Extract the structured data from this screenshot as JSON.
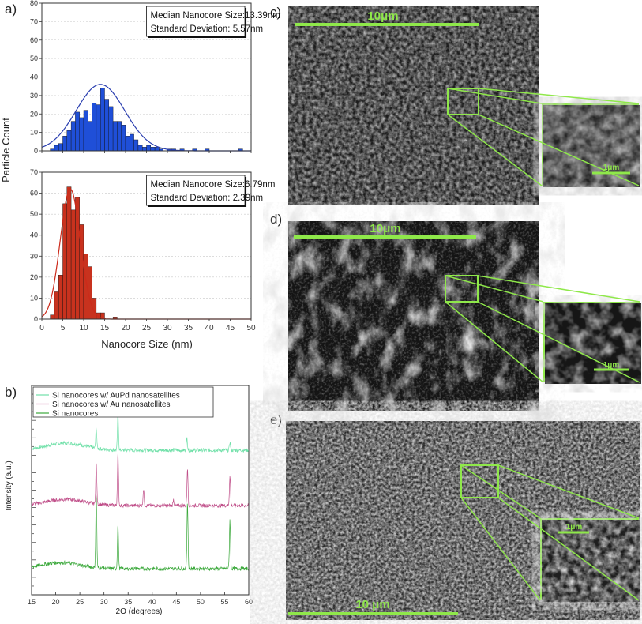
{
  "panels": {
    "a": "a)",
    "b": "b)",
    "c": "c)",
    "d": "d)",
    "e": "e)"
  },
  "histogram": {
    "ylabel": "Particle Count",
    "xlabel": "Nanocore Size (nm)",
    "xticks": [
      "0",
      "5",
      "10",
      "15",
      "20",
      "25",
      "30",
      "35",
      "40",
      "45",
      "50"
    ],
    "top": {
      "median_text": "Median Nanocore Size:13.39nm",
      "std_text": "Standard Deviation: 5.57nm",
      "yticks": [
        "0",
        "10",
        "20",
        "30",
        "40",
        "50",
        "60",
        "70",
        "80"
      ],
      "color": "#1f4fd8",
      "curve_color": "#2b3fb0"
    },
    "bottom": {
      "median_text": "Median Nanocore Size:6.79nm",
      "std_text": "Standard Deviation: 2.39nm",
      "yticks": [
        "0",
        "10",
        "20",
        "30",
        "40",
        "50",
        "60",
        "70"
      ],
      "color": "#c8321e",
      "curve_color": "#cc2a1a"
    }
  },
  "xrd": {
    "ylabel": "Intensity (a.u.)",
    "xlabel": "2Θ (degrees)",
    "xticks": [
      "15",
      "20",
      "25",
      "30",
      "35",
      "40",
      "45",
      "50",
      "55",
      "60"
    ],
    "legend": [
      {
        "label": "Si nanocores w/ AuPd nanosatellites",
        "color": "#6fe0a8"
      },
      {
        "label": "Si nanocores w/ Au nanosatellites",
        "color": "#c0508a"
      },
      {
        "label": "Si nanocores",
        "color": "#3aa83a"
      }
    ]
  },
  "sem": {
    "c": {
      "scale_main": "10μm",
      "scale_inset": "1μm"
    },
    "d": {
      "scale_main": "10μm",
      "scale_inset": "1μm"
    },
    "e": {
      "scale_main": "10 μm",
      "scale_inset": "1μm"
    },
    "accent": "#8fe84a"
  },
  "chart_data": [
    {
      "type": "bar",
      "title": "",
      "xlabel": "Nanocore Size (nm)",
      "ylabel": "Particle Count",
      "xlim": [
        0,
        50
      ],
      "ylim": [
        0,
        80
      ],
      "bin_width": 1,
      "bin_starts": [
        2,
        3,
        4,
        5,
        6,
        7,
        8,
        9,
        10,
        11,
        12,
        13,
        14,
        15,
        16,
        17,
        18,
        19,
        20,
        21,
        22,
        23,
        24,
        25,
        26,
        27,
        28,
        30,
        31,
        33,
        36,
        39,
        47
      ],
      "values": [
        1,
        3,
        4,
        8,
        11,
        16,
        21,
        18,
        22,
        16,
        26,
        25,
        34,
        28,
        24,
        16,
        16,
        14,
        8,
        9,
        6,
        3,
        2,
        3,
        2,
        2,
        1,
        1,
        1,
        1,
        1,
        1,
        1
      ],
      "fit": {
        "type": "gaussian",
        "center": 14,
        "amplitude": 36,
        "sigma": 5.8
      },
      "annotations": [
        "Median Nanocore Size:13.39nm",
        "Standard Deviation: 5.57nm"
      ]
    },
    {
      "type": "bar",
      "title": "",
      "xlabel": "Nanocore Size (nm)",
      "ylabel": "Particle Count",
      "xlim": [
        0,
        50
      ],
      "ylim": [
        0,
        70
      ],
      "bin_width": 1,
      "bin_starts": [
        2,
        3,
        4,
        5,
        6,
        7,
        8,
        9,
        10,
        11,
        12,
        13,
        14,
        17
      ],
      "values": [
        2,
        13,
        21,
        55,
        63,
        52,
        58,
        45,
        31,
        25,
        10,
        3,
        3,
        1
      ],
      "fit": {
        "type": "gaussian",
        "center": 6.8,
        "amplitude": 62,
        "sigma": 2.4
      },
      "annotations": [
        "Median Nanocore Size:6.79nm",
        "Standard Deviation: 2.39nm"
      ]
    },
    {
      "type": "line",
      "title": "",
      "xlabel": "2Θ (degrees)",
      "ylabel": "Intensity (a.u.)",
      "xlim": [
        15,
        60
      ],
      "series": [
        {
          "name": "Si nanocores w/ AuPd nanosatellites",
          "offset": 2,
          "hump_center": 22,
          "hump_height": 0.35,
          "peaks": [
            [
              28.4,
              1.0
            ],
            [
              32.9,
              1.8
            ],
            [
              47.2,
              0.6
            ],
            [
              56.1,
              0.4
            ]
          ]
        },
        {
          "name": "Si nanocores w/ Au nanosatellites",
          "offset": 1,
          "hump_center": 22,
          "hump_height": 0.3,
          "peaks": [
            [
              28.4,
              2.0
            ],
            [
              32.9,
              2.6
            ],
            [
              38.2,
              0.8
            ],
            [
              44.4,
              0.3
            ],
            [
              47.3,
              1.8
            ],
            [
              56.1,
              1.5
            ]
          ]
        },
        {
          "name": "Si nanocores",
          "offset": 0,
          "hump_center": 21,
          "hump_height": 0.3,
          "peaks": [
            [
              28.4,
              3.6
            ],
            [
              32.9,
              2.2
            ],
            [
              47.3,
              3.3
            ],
            [
              56.1,
              2.4
            ]
          ]
        }
      ]
    }
  ]
}
